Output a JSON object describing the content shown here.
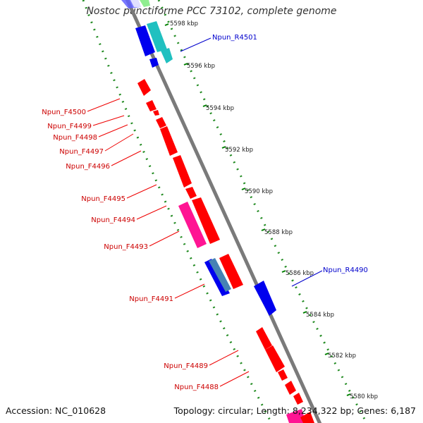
{
  "title": "Nostoc punctiforme PCC 73102, complete genome",
  "accession": "Accession: NC_010628",
  "summary": "Topology: circular; Length: 8,234,322 bp; Genes: 6,187",
  "ticks": [
    {
      "label": "5598 kbp"
    },
    {
      "label": "5596 kbp"
    },
    {
      "label": "5594 kbp"
    },
    {
      "label": "5592 kbp"
    },
    {
      "label": "5590 kbp"
    },
    {
      "label": "5588 kbp"
    },
    {
      "label": "5586 kbp"
    },
    {
      "label": "5584 kbp"
    },
    {
      "label": "5582 kbp"
    },
    {
      "label": "5580 kbp"
    }
  ],
  "genes_forward": [
    {
      "label": "Npun_F4500",
      "color": "#cc0000"
    },
    {
      "label": "Npun_F4499",
      "color": "#cc0000"
    },
    {
      "label": "Npun_F4498",
      "color": "#cc0000"
    },
    {
      "label": "Npun_F4497",
      "color": "#cc0000"
    },
    {
      "label": "Npun_F4496",
      "color": "#cc0000"
    },
    {
      "label": "Npun_F4495",
      "color": "#cc0000"
    },
    {
      "label": "Npun_F4494",
      "color": "#cc0000"
    },
    {
      "label": "Npun_F4493",
      "color": "#cc0000"
    },
    {
      "label": "Npun_F4491",
      "color": "#cc0000"
    },
    {
      "label": "Npun_F4489",
      "color": "#cc0000"
    },
    {
      "label": "Npun_F4488",
      "color": "#cc0000"
    }
  ],
  "genes_reverse": [
    {
      "label": "Npun_R4501",
      "color": "#0000cc"
    },
    {
      "label": "Npun_R4490",
      "color": "#0000cc"
    }
  ],
  "colors": {
    "forward_cds": "#ff0000",
    "reverse_cds": "#0000ff",
    "rna": "#ff1493",
    "teal": "#20c0c0",
    "tick": "#008000",
    "backbone": "#808080"
  }
}
